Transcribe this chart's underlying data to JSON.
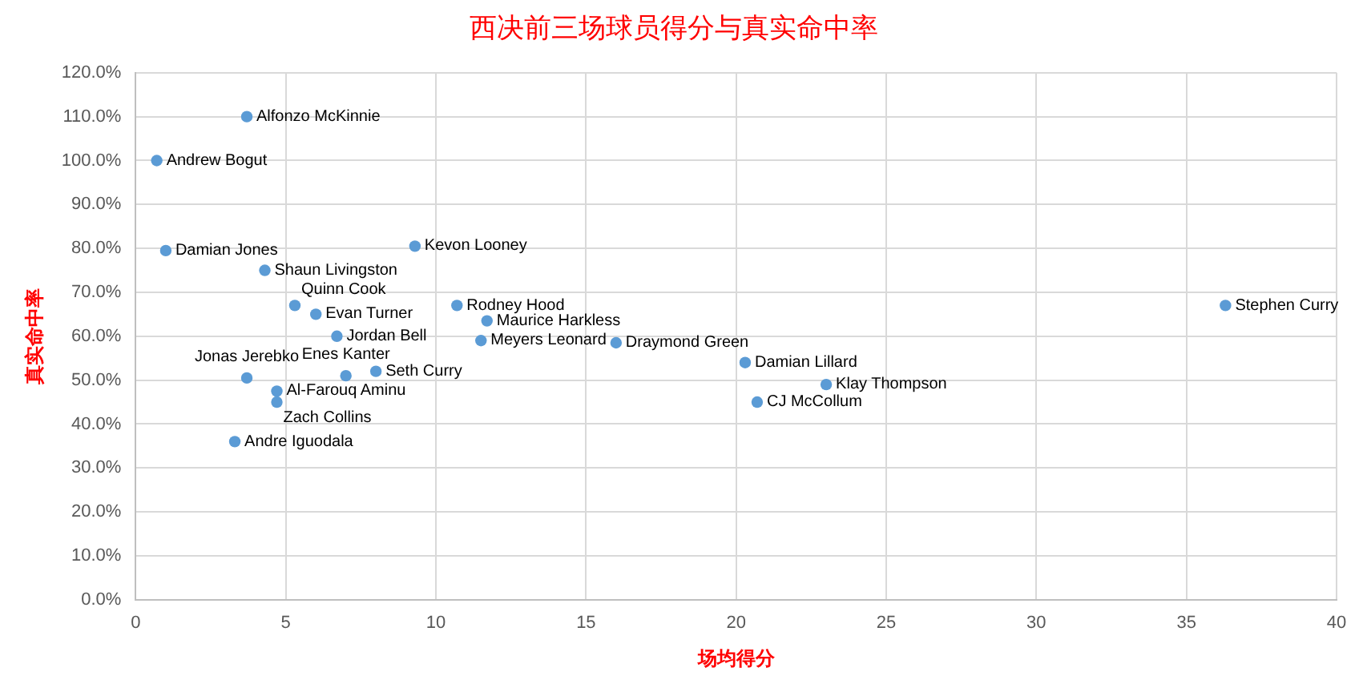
{
  "chart_data": {
    "type": "scatter",
    "title": "西决前三场球员得分与真实命中率",
    "xlabel": "场均得分",
    "ylabel": "真实命中率",
    "series": [
      {
        "name": "Andrew Bogut",
        "color": "#5b9bd5",
        "x": [
          0.7
        ],
        "values": [
          100
        ]
      },
      {
        "name": "Damian Jones",
        "color": "#5b9bd5",
        "x": [
          1.0
        ],
        "values": [
          79.5
        ]
      },
      {
        "name": "Andre Iguodala",
        "color": "#5b9bd5",
        "x": [
          3.3
        ],
        "values": [
          36
        ]
      },
      {
        "name": "Jonas Jerebko",
        "color": "#5b9bd5",
        "x": [
          3.7
        ],
        "values": [
          50.5
        ]
      },
      {
        "name": "Alfonzo McKinnie",
        "color": "#5b9bd5",
        "x": [
          3.7
        ],
        "values": [
          110
        ]
      },
      {
        "name": "Shaun Livingston",
        "color": "#5b9bd5",
        "x": [
          4.3
        ],
        "values": [
          75
        ]
      },
      {
        "name": "Al-Farouq Aminu",
        "color": "#5b9bd5",
        "x": [
          4.7
        ],
        "values": [
          47.5
        ]
      },
      {
        "name": "Zach Collins",
        "color": "#5b9bd5",
        "x": [
          4.7
        ],
        "values": [
          45
        ]
      },
      {
        "name": "Quinn Cook",
        "color": "#5b9bd5",
        "x": [
          5.3
        ],
        "values": [
          67
        ]
      },
      {
        "name": "Evan Turner",
        "color": "#5b9bd5",
        "x": [
          6.0
        ],
        "values": [
          65
        ]
      },
      {
        "name": "Jordan Bell",
        "color": "#5b9bd5",
        "x": [
          6.7
        ],
        "values": [
          60
        ]
      },
      {
        "name": "Enes Kanter",
        "color": "#5b9bd5",
        "x": [
          7.0
        ],
        "values": [
          51
        ]
      },
      {
        "name": "Seth Curry",
        "color": "#5b9bd5",
        "x": [
          8.0
        ],
        "values": [
          52
        ]
      },
      {
        "name": "Kevon Looney",
        "color": "#5b9bd5",
        "x": [
          9.3
        ],
        "values": [
          80.5
        ]
      },
      {
        "name": "Rodney Hood",
        "color": "#5b9bd5",
        "x": [
          10.7
        ],
        "values": [
          67
        ]
      },
      {
        "name": "Meyers Leonard",
        "color": "#5b9bd5",
        "x": [
          11.5
        ],
        "values": [
          59
        ]
      },
      {
        "name": "Maurice Harkless",
        "color": "#5b9bd5",
        "x": [
          11.7
        ],
        "values": [
          63.5
        ]
      },
      {
        "name": "Draymond Green",
        "color": "#5b9bd5",
        "x": [
          16.0
        ],
        "values": [
          58.5
        ]
      },
      {
        "name": "Damian Lillard",
        "color": "#5b9bd5",
        "x": [
          20.3
        ],
        "values": [
          54
        ]
      },
      {
        "name": "CJ McCollum",
        "color": "#5b9bd5",
        "x": [
          20.7
        ],
        "values": [
          45
        ]
      },
      {
        "name": "Klay Thompson",
        "color": "#5b9bd5",
        "x": [
          23.0
        ],
        "values": [
          49
        ]
      },
      {
        "name": "Stephen Curry",
        "color": "#5b9bd5",
        "x": [
          36.3
        ],
        "values": [
          67
        ]
      }
    ],
    "xlim": [
      0,
      40
    ],
    "xticks": [
      0,
      5,
      10,
      15,
      20,
      25,
      30,
      35,
      40
    ],
    "ylim": [
      0,
      120
    ],
    "yticks": [
      {
        "value": 0,
        "label": "0.0%"
      },
      {
        "value": 10,
        "label": "10.0%"
      },
      {
        "value": 20,
        "label": "20.0%"
      },
      {
        "value": 30,
        "label": "30.0%"
      },
      {
        "value": 40,
        "label": "40.0%"
      },
      {
        "value": 50,
        "label": "50.0%"
      },
      {
        "value": 60,
        "label": "60.0%"
      },
      {
        "value": 70,
        "label": "70.0%"
      },
      {
        "value": 80,
        "label": "80.0%"
      },
      {
        "value": 90,
        "label": "90.0%"
      },
      {
        "value": 100,
        "label": "100.0%"
      },
      {
        "value": 110,
        "label": "110.0%"
      },
      {
        "value": 120,
        "label": "120.0%"
      }
    ],
    "grid": true,
    "legend": false,
    "marker": "circle"
  }
}
